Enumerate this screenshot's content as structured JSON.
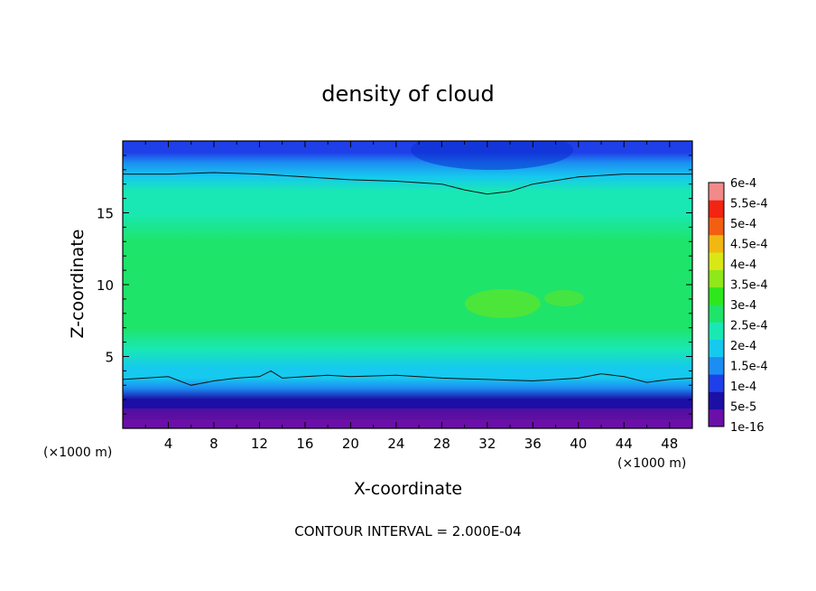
{
  "chart_data": {
    "type": "heatmap",
    "title": "density of cloud",
    "xlabel": "X-coordinate",
    "ylabel": "Z-coordinate",
    "x_unit_left": "(×1000 m)",
    "x_unit_right": "(×1000 m)",
    "footer": "CONTOUR INTERVAL = 2.000E-04",
    "xlim": [
      0,
      50
    ],
    "ylim": [
      0,
      20
    ],
    "x_ticks": [
      4,
      8,
      12,
      16,
      20,
      24,
      28,
      32,
      36,
      40,
      44,
      48
    ],
    "x_tick_labels": [
      "4",
      "8",
      "12",
      "16",
      "20",
      "24",
      "28",
      "32",
      "36",
      "40",
      "44",
      "48"
    ],
    "y_ticks": [
      5,
      10,
      15
    ],
    "y_tick_labels": [
      "5",
      "10",
      "15"
    ],
    "colorbar": {
      "labels": [
        "1e-16",
        "5e-5",
        "1e-4",
        "1.5e-4",
        "2e-4",
        "2.5e-4",
        "3e-4",
        "3.5e-4",
        "4e-4",
        "4.5e-4",
        "5e-4",
        "5.5e-4",
        "6e-4"
      ],
      "colors": [
        "#6a0fa8",
        "#1c0fa6",
        "#1f3fe8",
        "#1c8df2",
        "#16c9ee",
        "#19e8b4",
        "#1ee46a",
        "#2ee81c",
        "#8fe81a",
        "#d9e815",
        "#f2b812",
        "#f25e12",
        "#f22412",
        "#f28a8a"
      ]
    },
    "profile_z": [
      0.0,
      0.8,
      1.3,
      2.0,
      2.8,
      3.5,
      4.2,
      5.5,
      7.0,
      9.0,
      11.0,
      13.0,
      15.0,
      16.5,
      17.5,
      18.5,
      19.2,
      20.0
    ],
    "profile_value": [
      3e-05,
      3e-05,
      5e-05,
      9e-05,
      0.00014,
      0.00019,
      0.00022,
      0.00025,
      0.00029,
      0.00031,
      0.0003,
      0.00028,
      0.00026,
      0.00024,
      0.00022,
      0.00016,
      0.00012,
      0.0001
    ],
    "contour_lines": [
      {
        "level": 0.0002,
        "x": [
          0,
          4,
          6,
          8,
          10,
          12,
          13,
          14,
          16,
          18,
          20,
          24,
          28,
          32,
          36,
          40,
          42,
          44,
          46,
          48,
          50
        ],
        "z": [
          3.4,
          3.6,
          3.0,
          3.3,
          3.5,
          3.6,
          4.0,
          3.5,
          3.6,
          3.7,
          3.6,
          3.7,
          3.5,
          3.4,
          3.3,
          3.5,
          3.8,
          3.6,
          3.2,
          3.4,
          3.5
        ]
      },
      {
        "level": 0.0002,
        "x": [
          0,
          4,
          8,
          12,
          16,
          20,
          24,
          28,
          30,
          32,
          34,
          36,
          40,
          44,
          48,
          50
        ],
        "z": [
          17.7,
          17.7,
          17.8,
          17.7,
          17.5,
          17.3,
          17.2,
          17.0,
          16.6,
          16.3,
          16.5,
          17.0,
          17.5,
          17.7,
          17.7,
          17.7
        ]
      }
    ]
  }
}
